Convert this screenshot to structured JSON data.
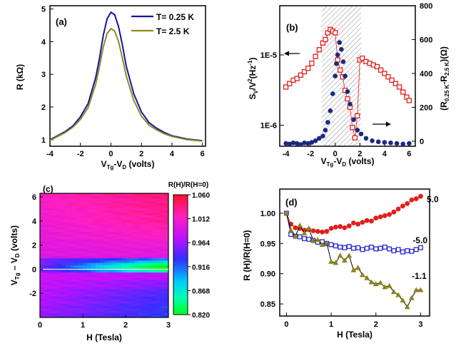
{
  "colors": {
    "blue": "#1414a0",
    "olive": "#8f8a1c",
    "red": "#e0201c",
    "squareRed": "#e0201c",
    "navy": "#1a2a80",
    "openBlue": "#2a2ad0",
    "darkOlive": "#8a8418",
    "frame": "#000000"
  },
  "chart_data": [
    {
      "id": "a",
      "type": "line",
      "label": "(a)",
      "xlabel_main": "V",
      "xlabel_sub1": "Tg",
      "xlabel_mid": "-V",
      "xlabel_sub2": "D",
      "xlabel_tail": " (volts)",
      "ylabel": "R (kΩ)",
      "xlim": [
        -4,
        6.2
      ],
      "ylim": [
        0.8,
        5.1
      ],
      "xticks": [
        -4,
        -2,
        0,
        2,
        4,
        6
      ],
      "yticks": [
        1,
        2,
        3,
        4,
        5
      ],
      "legend": [
        "T= 0.25 K",
        "T= 2.5 K"
      ],
      "x": [
        -4,
        -3.5,
        -3,
        -2.5,
        -2,
        -1.5,
        -1,
        -0.75,
        -0.5,
        -0.25,
        0,
        0.25,
        0.5,
        0.75,
        1,
        1.5,
        2,
        2.5,
        3,
        3.5,
        4,
        5,
        6
      ],
      "series": [
        {
          "name": "T= 0.25 K",
          "values": [
            1.0,
            1.12,
            1.25,
            1.42,
            1.7,
            2.1,
            2.9,
            3.5,
            4.2,
            4.7,
            4.9,
            4.82,
            4.45,
            3.9,
            3.25,
            2.4,
            1.85,
            1.52,
            1.35,
            1.22,
            1.12,
            1.02,
            0.97
          ]
        },
        {
          "name": "T= 2.5 K",
          "values": [
            0.98,
            1.1,
            1.22,
            1.38,
            1.62,
            1.98,
            2.7,
            3.25,
            3.85,
            4.25,
            4.4,
            4.32,
            4.0,
            3.5,
            2.95,
            2.2,
            1.72,
            1.45,
            1.3,
            1.18,
            1.1,
            1.0,
            0.96
          ]
        }
      ]
    },
    {
      "id": "b",
      "type": "scatter",
      "label": "(b)",
      "xlabel": "VTg-VD (volts)",
      "ylabel_left": "SV/V2(Hz-1)",
      "ylabel_right": "(R0.25 K-R2.5 K)(Ω)",
      "xlim": [
        -4.5,
        6.5
      ],
      "xticks": [
        -4,
        -2,
        0,
        2,
        4,
        6
      ],
      "left_yticks": [
        "1E-6",
        "1E-5"
      ],
      "left_log_lim": [
        -6.3,
        -4.3
      ],
      "right_ylim": [
        -30,
        800
      ],
      "right_yticks": [
        0,
        200,
        400,
        600,
        800
      ],
      "shaded_range": [
        -1.1,
        2.1
      ],
      "series": [
        {
          "name": "Sv/V^2 (left axis, filled circles)",
          "x": [
            -4,
            -3.7,
            -3.4,
            -3.1,
            -2.8,
            -2.5,
            -2.2,
            -1.9,
            -1.6,
            -1.3,
            -1.0,
            -0.8,
            -0.6,
            -0.4,
            -0.2,
            0.0,
            0.1,
            0.2,
            0.35,
            0.5,
            0.65,
            0.8,
            1.0,
            1.2,
            1.5,
            1.8,
            2.1,
            2.5,
            3.0,
            3.5,
            4.0,
            4.5,
            5.0,
            5.5,
            6.0
          ],
          "values": [
            5.5e-07,
            5.4e-07,
            5.6e-07,
            5.5e-07,
            5.3e-07,
            5.6e-07,
            5.5e-07,
            5.7e-07,
            6e-07,
            6.5e-07,
            7e-07,
            8.5e-07,
            1.1e-06,
            1.6e-06,
            2.8e-06,
            5e-06,
            7.5e-06,
            1e-05,
            1.5e-05,
            1.2e-05,
            8e-06,
            5e-06,
            3e-06,
            2e-06,
            1.2e-06,
            8.5e-07,
            7.5e-07,
            6.5e-07,
            6e-07,
            5.8e-07,
            5.7e-07,
            5.6e-07,
            5.5e-07,
            5.4e-07,
            5.5e-07
          ]
        },
        {
          "name": "R0.25K-R2.5K (right axis, open squares)",
          "x": [
            -4,
            -3.7,
            -3.4,
            -3.1,
            -2.8,
            -2.5,
            -2.2,
            -1.9,
            -1.6,
            -1.3,
            -1.0,
            -0.8,
            -0.6,
            -0.4,
            -0.2,
            0.0,
            0.2,
            0.4,
            0.6,
            0.8,
            1.0,
            1.2,
            1.4,
            1.6,
            1.8,
            2.0,
            2.2,
            2.5,
            2.8,
            3.1,
            3.4,
            3.7,
            4.0,
            4.3,
            4.6,
            4.9,
            5.2,
            5.5,
            5.8,
            6.0
          ],
          "values": [
            320,
            340,
            360,
            370,
            390,
            410,
            430,
            460,
            500,
            540,
            580,
            600,
            640,
            660,
            650,
            640,
            480,
            420,
            380,
            300,
            250,
            200,
            80,
            20,
            150,
            480,
            490,
            470,
            460,
            450,
            440,
            420,
            400,
            380,
            360,
            340,
            320,
            290,
            260,
            240
          ]
        }
      ]
    },
    {
      "id": "c",
      "type": "heatmap",
      "label": "(c)",
      "xlabel": "H (Tesla)",
      "ylabel": "VTg - VD (volts)",
      "xlim": [
        0,
        3
      ],
      "ylim": [
        -4,
        6.3
      ],
      "xticks": [
        0,
        1,
        2,
        3
      ],
      "yticks": [
        -2,
        0,
        2,
        4,
        6
      ],
      "colorbar_title": "R(H)/R(H=0)",
      "colorbar_ticks": [
        "1.060",
        "1.012",
        "0.964",
        "0.916",
        "0.868",
        "0.820"
      ],
      "zlim": [
        0.82,
        1.06
      ]
    },
    {
      "id": "d",
      "type": "scatter",
      "label": "(d)",
      "xlabel": "H (Tesla)",
      "ylabel": "R (H)/R(H=0)",
      "xlim": [
        -0.15,
        3.2
      ],
      "ylim": [
        0.83,
        1.04
      ],
      "xticks": [
        0,
        1,
        2,
        3
      ],
      "yticks": [
        "0.85",
        "0.90",
        "0.95",
        "1.00"
      ],
      "series": [
        {
          "name": "5.0",
          "x": [
            0,
            0.1,
            0.2,
            0.3,
            0.4,
            0.5,
            0.6,
            0.7,
            0.8,
            0.9,
            1.0,
            1.1,
            1.2,
            1.3,
            1.4,
            1.5,
            1.6,
            1.7,
            1.8,
            1.9,
            2.0,
            2.1,
            2.2,
            2.3,
            2.4,
            2.5,
            2.6,
            2.7,
            2.8,
            2.9,
            3.0
          ],
          "values": [
            1.0,
            0.982,
            0.976,
            0.975,
            0.972,
            0.973,
            0.971,
            0.97,
            0.969,
            0.97,
            0.975,
            0.977,
            0.978,
            0.976,
            0.979,
            0.984,
            0.982,
            0.985,
            0.988,
            0.987,
            0.992,
            0.994,
            0.996,
            0.998,
            1.002,
            1.007,
            1.012,
            1.016,
            1.022,
            1.024,
            1.028
          ]
        },
        {
          "name": "-5.0",
          "x": [
            0,
            0.1,
            0.2,
            0.3,
            0.4,
            0.5,
            0.6,
            0.7,
            0.8,
            0.9,
            1.0,
            1.1,
            1.2,
            1.3,
            1.4,
            1.5,
            1.6,
            1.7,
            1.8,
            1.9,
            2.0,
            2.1,
            2.2,
            2.3,
            2.4,
            2.5,
            2.6,
            2.7,
            2.8,
            2.9,
            3.0
          ],
          "values": [
            1.0,
            0.965,
            0.962,
            0.961,
            0.958,
            0.957,
            0.955,
            0.952,
            0.953,
            0.95,
            0.948,
            0.946,
            0.944,
            0.943,
            0.945,
            0.942,
            0.943,
            0.94,
            0.942,
            0.944,
            0.941,
            0.942,
            0.944,
            0.941,
            0.938,
            0.94,
            0.936,
            0.938,
            0.937,
            0.94,
            0.943
          ]
        },
        {
          "name": "-1.1",
          "x": [
            0,
            0.1,
            0.2,
            0.3,
            0.4,
            0.5,
            0.6,
            0.7,
            0.8,
            0.9,
            1.0,
            1.1,
            1.2,
            1.3,
            1.4,
            1.5,
            1.6,
            1.7,
            1.8,
            1.9,
            2.0,
            2.1,
            2.2,
            2.3,
            2.4,
            2.5,
            2.6,
            2.7,
            2.8,
            2.9,
            3.0
          ],
          "values": [
            1.0,
            0.972,
            0.962,
            0.98,
            0.967,
            0.975,
            0.955,
            0.956,
            0.948,
            0.951,
            0.92,
            0.918,
            0.93,
            0.922,
            0.93,
            0.906,
            0.91,
            0.898,
            0.893,
            0.886,
            0.883,
            0.885,
            0.878,
            0.88,
            0.87,
            0.865,
            0.856,
            0.845,
            0.86,
            0.873,
            0.873
          ]
        }
      ]
    }
  ]
}
